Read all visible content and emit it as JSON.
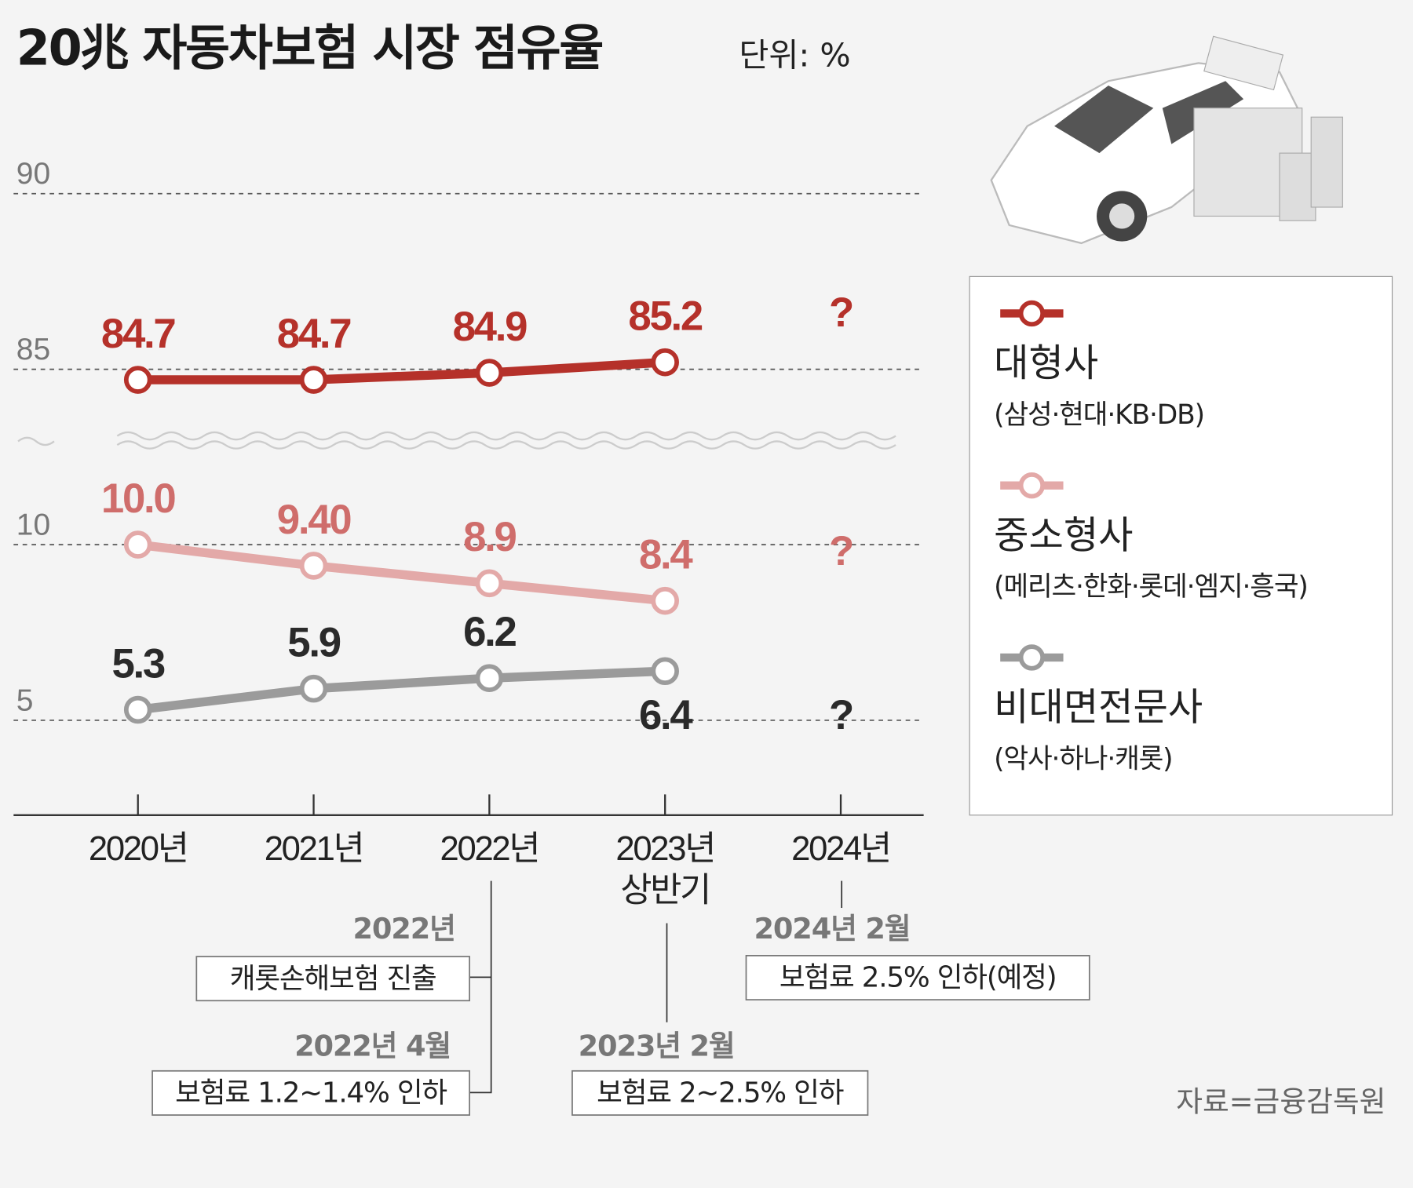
{
  "chart_data": {
    "type": "line",
    "title": "20兆 자동차보험 시장 점유율",
    "unit": "단위: %",
    "source": "자료=금융감독원",
    "categories": [
      "2020년",
      "2021년",
      "2022년",
      "2023년 상반기",
      "2024년"
    ],
    "ylim_upper": [
      83,
      91
    ],
    "yticks_upper": [
      85,
      90
    ],
    "ylim": [
      2.3,
      12.7
    ],
    "yticks": [
      5,
      10
    ],
    "grid": true,
    "series": [
      {
        "name": "대형사",
        "members": "(삼성·현대·KB·DB)",
        "color": "#b5312a",
        "label_color": "#b5312a",
        "panel": "upper",
        "values": [
          84.7,
          84.7,
          84.9,
          85.2,
          null
        ],
        "value_labels": [
          "84.7",
          "84.7",
          "84.9",
          "85.2",
          "?"
        ]
      },
      {
        "name": "중소형사",
        "members": "(메리츠·한화·롯데·엠지·흥국)",
        "color": "#e3a9a8",
        "label_color": "#cf6d6b",
        "panel": "lower",
        "values": [
          10.0,
          9.4,
          8.9,
          8.4,
          null
        ],
        "value_labels": [
          "10.0",
          "9.40",
          "8.9",
          "8.4",
          "?"
        ]
      },
      {
        "name": "비대면전문사",
        "members": "(악사·하나·캐롯)",
        "color": "#9b9b9b",
        "label_color": "#2a2a2a",
        "panel": "lower",
        "values": [
          5.3,
          5.9,
          6.2,
          6.4,
          null
        ],
        "value_labels": [
          "5.3",
          "5.9",
          "6.2",
          "6.4",
          "?"
        ]
      }
    ],
    "annotations": [
      {
        "date": "2022년",
        "text": "캐롯손해보험 진출"
      },
      {
        "date": "2022년 4월",
        "text": "보험료 1.2~1.4% 인하"
      },
      {
        "date": "2023년 2월",
        "text": "보험료 2~2.5% 인하"
      },
      {
        "date": "2024년 2월",
        "text": "보험료 2.5% 인하(예정)"
      }
    ]
  }
}
